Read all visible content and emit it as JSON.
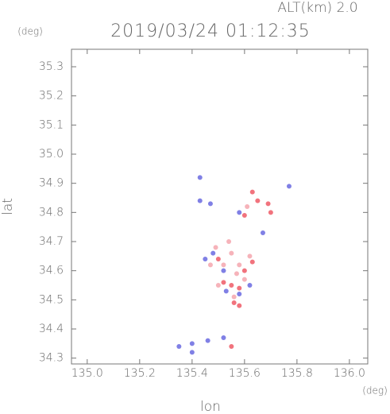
{
  "alt_label": "ALT(km) 2.0",
  "unit_top": "(deg)",
  "chart_data": {
    "type": "scatter",
    "title": "2019/03/24 01:12:35",
    "x_label": "lon",
    "y_label": "lat",
    "x_unit": "(deg)",
    "xlim": [
      134.94,
      136.07
    ],
    "ylim": [
      34.28,
      35.36
    ],
    "xticks": [
      {
        "value": 135.0,
        "label": "135.0"
      },
      135.2,
      135.4,
      135.6,
      135.8,
      {
        "value": 136.0,
        "label": "136.0"
      }
    ],
    "yticks": [
      34.3,
      34.4,
      34.5,
      34.6,
      34.7,
      34.8,
      34.9,
      {
        "value": 35.0,
        "label": "35.0"
      },
      35.1,
      35.2,
      35.3
    ],
    "series": [
      {
        "color": "#f4a6ae",
        "x": [
          135.55,
          135.58,
          135.52,
          135.6,
          135.5,
          135.56,
          135.47,
          135.62,
          135.54,
          135.61,
          135.49,
          135.57
        ],
        "values": [
          34.66,
          34.62,
          34.62,
          34.57,
          34.55,
          34.51,
          34.62,
          34.65,
          34.7,
          34.82,
          34.68,
          34.59
        ]
      },
      {
        "color": "#ee5a66",
        "x": [
          135.63,
          135.65,
          135.69,
          135.6,
          135.52,
          135.55,
          135.58,
          135.56,
          135.58,
          135.6,
          135.63,
          135.5,
          135.55,
          135.7
        ],
        "values": [
          34.87,
          34.84,
          34.83,
          34.79,
          34.56,
          34.55,
          34.54,
          34.49,
          34.48,
          34.6,
          34.63,
          34.64,
          34.34,
          34.8
        ]
      },
      {
        "color": "#6a6ae0",
        "x": [
          135.48,
          135.45,
          135.52,
          135.58,
          135.53,
          135.62,
          135.47,
          135.43,
          135.58,
          135.67,
          135.35,
          135.4,
          135.46,
          135.52,
          135.77,
          135.4,
          135.43
        ],
        "values": [
          34.66,
          34.64,
          34.6,
          34.52,
          34.53,
          34.55,
          34.83,
          34.84,
          34.8,
          34.73,
          34.34,
          34.35,
          34.36,
          34.37,
          34.89,
          34.32,
          34.92
        ]
      }
    ]
  }
}
